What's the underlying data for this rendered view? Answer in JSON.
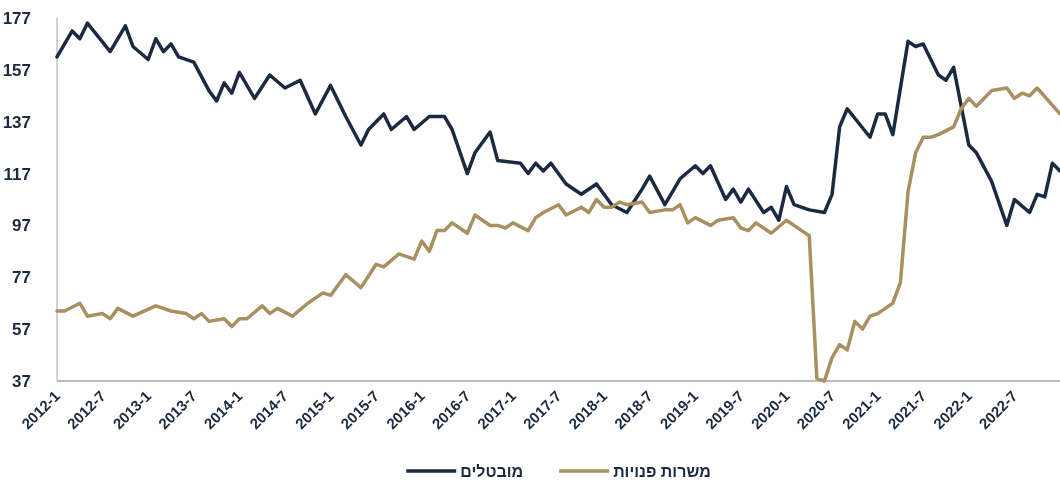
{
  "chart_data": {
    "type": "line",
    "legend": "bottom",
    "ylim": [
      37,
      177
    ],
    "yticks": [
      37,
      57,
      77,
      97,
      117,
      137,
      157,
      177
    ],
    "xlim": [
      "2012-01",
      "2023-01"
    ],
    "xticks": [
      {
        "value": "2012-01",
        "label": "2012-1"
      },
      {
        "value": "2012-07",
        "label": "2012-7"
      },
      {
        "value": "2013-01",
        "label": "2013-1"
      },
      {
        "value": "2013-07",
        "label": "2013-7"
      },
      {
        "value": "2014-01",
        "label": "2014-1"
      },
      {
        "value": "2014-07",
        "label": "2014-7"
      },
      {
        "value": "2015-01",
        "label": "2015-1"
      },
      {
        "value": "2015-07",
        "label": "2015-7"
      },
      {
        "value": "2016-01",
        "label": "2016-1"
      },
      {
        "value": "2016-07",
        "label": "2016-7"
      },
      {
        "value": "2017-01",
        "label": "2017-1"
      },
      {
        "value": "2017-07",
        "label": "2017-7"
      },
      {
        "value": "2018-01",
        "label": "2018-1"
      },
      {
        "value": "2018-07",
        "label": "2018-7"
      },
      {
        "value": "2019-01",
        "label": "2019-1"
      },
      {
        "value": "2019-07",
        "label": "2019-7"
      },
      {
        "value": "2020-01",
        "label": "2020-1"
      },
      {
        "value": "2020-07",
        "label": "2020-7"
      },
      {
        "value": "2021-01",
        "label": "2021-1"
      },
      {
        "value": "2021-07",
        "label": "2021-7"
      },
      {
        "value": "2022-01",
        "label": "2022-1"
      },
      {
        "value": "2022-07",
        "label": "2022-7"
      }
    ],
    "series": [
      {
        "name": "מובטלים",
        "color": "#1b2a41",
        "x": [
          "2012-01",
          "2012-03",
          "2012-04",
          "2012-05",
          "2012-08",
          "2012-10",
          "2012-11",
          "2013-01",
          "2013-02",
          "2013-03",
          "2013-04",
          "2013-05",
          "2013-07",
          "2013-09",
          "2013-10",
          "2013-11",
          "2013-12",
          "2014-01",
          "2014-03",
          "2014-05",
          "2014-07",
          "2014-09",
          "2014-11",
          "2015-01",
          "2015-03",
          "2015-05",
          "2015-06",
          "2015-08",
          "2015-09",
          "2015-11",
          "2015-12",
          "2016-02",
          "2016-04",
          "2016-05",
          "2016-07",
          "2016-08",
          "2016-10",
          "2016-11",
          "2017-02",
          "2017-03",
          "2017-04",
          "2017-05",
          "2017-06",
          "2017-08",
          "2017-10",
          "2017-12",
          "2018-02",
          "2018-04",
          "2018-06",
          "2018-07",
          "2018-09",
          "2018-11",
          "2019-01",
          "2019-02",
          "2019-03",
          "2019-05",
          "2019-06",
          "2019-07",
          "2019-08",
          "2019-10",
          "2019-11",
          "2019-12",
          "2020-01",
          "2020-02",
          "2020-04",
          "2020-06",
          "2020-07",
          "2020-08",
          "2020-09",
          "2020-12",
          "2021-01",
          "2021-02",
          "2021-03",
          "2021-05",
          "2021-06",
          "2021-07",
          "2021-09",
          "2021-10",
          "2021-11",
          "2022-01",
          "2022-02",
          "2022-04",
          "2022-06",
          "2022-07",
          "2022-09",
          "2022-10",
          "2022-11",
          "2022-12",
          "2023-01"
        ],
        "values": [
          162,
          172,
          169,
          175,
          164,
          174,
          166,
          161,
          169,
          164,
          167,
          162,
          160,
          149,
          145,
          152,
          148,
          156,
          146,
          155,
          150,
          153,
          140,
          151,
          139,
          128,
          134,
          140,
          134,
          139,
          134,
          139,
          139,
          134,
          117,
          125,
          133,
          122,
          121,
          117,
          121,
          118,
          121,
          113,
          109,
          113,
          105,
          102,
          111,
          116,
          105,
          115,
          120,
          117,
          120,
          107,
          111,
          106,
          111,
          102,
          104,
          99,
          112,
          105,
          103,
          102,
          109,
          135,
          142,
          131,
          140,
          140,
          132,
          168,
          166,
          167,
          155,
          153,
          158,
          128,
          125,
          114,
          97,
          107,
          102,
          109,
          108,
          121,
          118
        ]
      },
      {
        "name": "משרות פנויות",
        "color": "#a89060",
        "x": [
          "2012-01",
          "2012-02",
          "2012-04",
          "2012-05",
          "2012-07",
          "2012-08",
          "2012-09",
          "2012-11",
          "2013-02",
          "2013-04",
          "2013-06",
          "2013-07",
          "2013-08",
          "2013-09",
          "2013-11",
          "2013-12",
          "2014-01",
          "2014-02",
          "2014-04",
          "2014-05",
          "2014-06",
          "2014-08",
          "2014-10",
          "2014-12",
          "2015-01",
          "2015-03",
          "2015-05",
          "2015-07",
          "2015-08",
          "2015-10",
          "2015-12",
          "2016-01",
          "2016-02",
          "2016-03",
          "2016-04",
          "2016-05",
          "2016-07",
          "2016-08",
          "2016-10",
          "2016-11",
          "2016-12",
          "2017-01",
          "2017-03",
          "2017-04",
          "2017-05",
          "2017-07",
          "2017-08",
          "2017-10",
          "2017-11",
          "2017-12",
          "2018-01",
          "2018-02",
          "2018-03",
          "2018-04",
          "2018-06",
          "2018-07",
          "2018-09",
          "2018-10",
          "2018-11",
          "2018-12",
          "2019-01",
          "2019-03",
          "2019-04",
          "2019-06",
          "2019-07",
          "2019-08",
          "2019-09",
          "2019-11",
          "2020-01",
          "2020-03",
          "2020-04",
          "2020-05",
          "2020-06",
          "2020-07",
          "2020-08",
          "2020-09",
          "2020-10",
          "2020-11",
          "2020-12",
          "2021-01",
          "2021-03",
          "2021-04",
          "2021-05",
          "2021-06",
          "2021-07",
          "2021-08",
          "2021-09",
          "2021-11",
          "2021-12",
          "2022-01",
          "2022-02",
          "2022-04",
          "2022-06",
          "2022-07",
          "2022-08",
          "2022-09",
          "2022-10",
          "2023-01"
        ],
        "values": [
          64,
          64,
          67,
          62,
          63,
          61,
          65,
          62,
          66,
          64,
          63,
          61,
          63,
          60,
          61,
          58,
          61,
          61,
          66,
          63,
          65,
          62,
          67,
          71,
          70,
          78,
          73,
          82,
          81,
          86,
          84,
          91,
          87,
          95,
          95,
          98,
          94,
          101,
          97,
          97,
          96,
          98,
          95,
          100,
          102,
          105,
          101,
          104,
          102,
          107,
          104,
          104,
          106,
          105,
          106,
          102,
          103,
          103,
          105,
          98,
          100,
          97,
          99,
          100,
          96,
          95,
          98,
          94,
          99,
          95,
          93,
          38,
          37,
          46,
          51,
          49,
          60,
          57,
          62,
          63,
          67,
          75,
          110,
          125,
          131,
          131,
          132,
          135,
          142,
          146,
          143,
          149,
          150,
          146,
          148,
          147,
          150,
          140
        ]
      }
    ]
  }
}
